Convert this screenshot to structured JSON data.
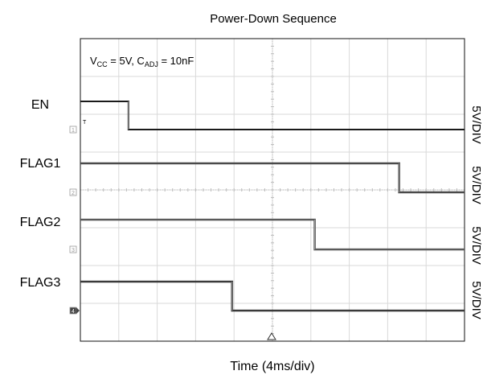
{
  "chart_data": {
    "type": "line",
    "title": "Power-Down Sequence",
    "xlabel": "Time (4ms/div)",
    "ylabel": "",
    "x_divisions": 10,
    "y_divisions": 8,
    "x_unit_per_div_ms": 4,
    "xlim_ms": [
      0,
      40
    ],
    "grid": true,
    "annotation": {
      "v_main": "V",
      "v_sub": "CC",
      "v_rest": " = 5V, C",
      "c_sub": "ADJ",
      "c_rest": " = 10nF"
    },
    "trigger_marker": "T",
    "series": [
      {
        "name": "EN",
        "channel": "1",
        "scale": "5V/DIV",
        "x": [
          0,
          5,
          5,
          40
        ],
        "y": [
          5,
          5,
          0,
          0
        ],
        "color": "#1a1a1a"
      },
      {
        "name": "FLAG1",
        "channel": "2",
        "scale": "5V/DIV",
        "x": [
          0,
          33.2,
          33.2,
          40
        ],
        "y": [
          5,
          5,
          0,
          0
        ],
        "color": "#4a4a4a"
      },
      {
        "name": "FLAG2",
        "channel": "3",
        "scale": "5V/DIV",
        "x": [
          0,
          24.4,
          24.4,
          40
        ],
        "y": [
          5,
          5,
          0,
          0
        ],
        "color": "#5a5a5a"
      },
      {
        "name": "FLAG3",
        "channel": "4",
        "scale": "5V/DIV",
        "x": [
          0,
          15.8,
          15.8,
          40
        ],
        "y": [
          5,
          5,
          0,
          0
        ],
        "color": "#3a3a3a"
      }
    ]
  }
}
